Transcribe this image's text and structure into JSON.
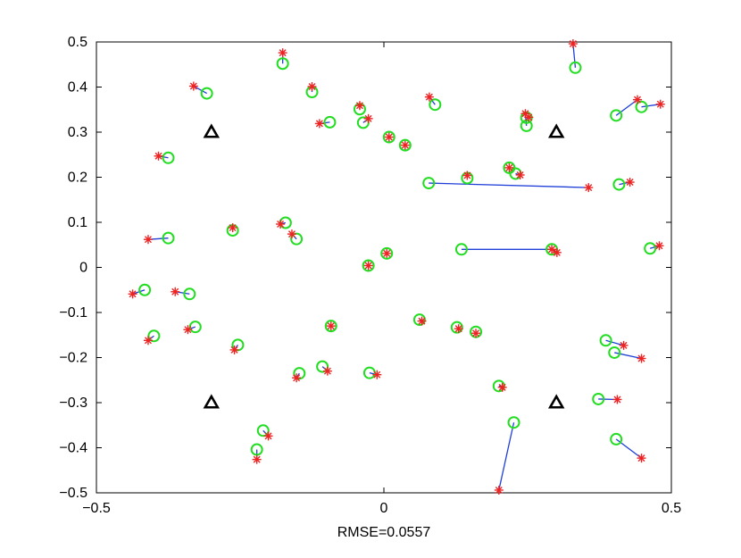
{
  "chart_data": {
    "type": "scatter",
    "xlabel": "RMSE=0.0557",
    "ylabel": "",
    "title": "",
    "xlim": [
      -0.5,
      0.5
    ],
    "ylim": [
      -0.5,
      0.5
    ],
    "xticks": [
      -0.5,
      0,
      0.5
    ],
    "xtick_labels": [
      "−0.5",
      "0",
      "0.5"
    ],
    "yticks": [
      -0.5,
      -0.4,
      -0.3,
      -0.2,
      -0.1,
      0,
      0.1,
      0.2,
      0.3,
      0.4,
      0.5
    ],
    "ytick_labels": [
      "−0.5",
      "−0.4",
      "−0.3",
      "−0.2",
      "−0.1",
      "0",
      "0.1",
      "0.2",
      "0.3",
      "0.4",
      "0.5"
    ],
    "grid": false,
    "colors": {
      "circle": "#22dd22",
      "star": "#ee2222",
      "line": "#1f3fd8",
      "anchor": "#000000"
    },
    "anchors": [
      {
        "x": -0.3,
        "y": 0.3
      },
      {
        "x": 0.3,
        "y": 0.3
      },
      {
        "x": -0.3,
        "y": -0.3
      },
      {
        "x": 0.3,
        "y": -0.3
      }
    ],
    "pairs": [
      {
        "true": [
          -0.176,
          0.452
        ],
        "est": [
          -0.176,
          0.476
        ]
      },
      {
        "true": [
          -0.308,
          0.386
        ],
        "est": [
          -0.331,
          0.402
        ]
      },
      {
        "true": [
          -0.125,
          0.389
        ],
        "est": [
          -0.125,
          0.401
        ]
      },
      {
        "true": [
          0.333,
          0.443
        ],
        "est": [
          0.329,
          0.496
        ]
      },
      {
        "true": [
          0.089,
          0.361
        ],
        "est": [
          0.079,
          0.378
        ]
      },
      {
        "true": [
          -0.094,
          0.322
        ],
        "est": [
          -0.112,
          0.319
        ]
      },
      {
        "true": [
          -0.042,
          0.351
        ],
        "est": [
          -0.042,
          0.359
        ]
      },
      {
        "true": [
          -0.036,
          0.321
        ],
        "est": [
          -0.027,
          0.33
        ]
      },
      {
        "true": [
          0.248,
          0.314
        ],
        "est": [
          0.246,
          0.341
        ]
      },
      {
        "true": [
          0.248,
          0.332
        ],
        "est": [
          0.252,
          0.333
        ]
      },
      {
        "true": [
          0.404,
          0.337
        ],
        "est": [
          0.441,
          0.372
        ]
      },
      {
        "true": [
          0.448,
          0.356
        ],
        "est": [
          0.481,
          0.362
        ]
      },
      {
        "true": [
          0.009,
          0.289
        ],
        "est": [
          0.009,
          0.289
        ]
      },
      {
        "true": [
          0.037,
          0.271
        ],
        "est": [
          0.037,
          0.271
        ]
      },
      {
        "true": [
          -0.375,
          0.243
        ],
        "est": [
          -0.392,
          0.247
        ]
      },
      {
        "true": [
          0.218,
          0.221
        ],
        "est": [
          0.218,
          0.221
        ]
      },
      {
        "true": [
          0.229,
          0.208
        ],
        "est": [
          0.237,
          0.205
        ]
      },
      {
        "true": [
          0.145,
          0.198
        ],
        "est": [
          0.145,
          0.204
        ]
      },
      {
        "true": [
          0.078,
          0.187
        ],
        "est": [
          0.356,
          0.177
        ]
      },
      {
        "true": [
          0.409,
          0.184
        ],
        "est": [
          0.428,
          0.189
        ]
      },
      {
        "true": [
          -0.171,
          0.099
        ],
        "est": [
          -0.18,
          0.096
        ]
      },
      {
        "true": [
          -0.263,
          0.082
        ],
        "est": [
          -0.263,
          0.088
        ]
      },
      {
        "true": [
          -0.152,
          0.063
        ],
        "est": [
          -0.16,
          0.074
        ]
      },
      {
        "true": [
          -0.375,
          0.065
        ],
        "est": [
          -0.41,
          0.062
        ]
      },
      {
        "true": [
          0.135,
          0.04
        ],
        "est": [
          0.292,
          0.04
        ]
      },
      {
        "true": [
          0.292,
          0.04
        ],
        "est": [
          0.301,
          0.033
        ]
      },
      {
        "true": [
          0.463,
          0.042
        ],
        "est": [
          0.479,
          0.048
        ]
      },
      {
        "true": [
          0.005,
          0.031
        ],
        "est": [
          0.005,
          0.031
        ]
      },
      {
        "true": [
          -0.027,
          0.004
        ],
        "est": [
          -0.027,
          0.004
        ]
      },
      {
        "true": [
          -0.416,
          -0.05
        ],
        "est": [
          -0.437,
          -0.059
        ]
      },
      {
        "true": [
          -0.338,
          -0.059
        ],
        "est": [
          -0.363,
          -0.054
        ]
      },
      {
        "true": [
          -0.328,
          -0.132
        ],
        "est": [
          -0.341,
          -0.138
        ]
      },
      {
        "true": [
          0.062,
          -0.116
        ],
        "est": [
          0.066,
          -0.119
        ]
      },
      {
        "true": [
          -0.092,
          -0.13
        ],
        "est": [
          -0.092,
          -0.13
        ]
      },
      {
        "true": [
          0.127,
          -0.133
        ],
        "est": [
          0.13,
          -0.136
        ]
      },
      {
        "true": [
          0.16,
          -0.143
        ],
        "est": [
          0.16,
          -0.146
        ]
      },
      {
        "true": [
          -0.4,
          -0.152
        ],
        "est": [
          -0.41,
          -0.162
        ]
      },
      {
        "true": [
          -0.254,
          -0.172
        ],
        "est": [
          -0.26,
          -0.183
        ]
      },
      {
        "true": [
          0.386,
          -0.162
        ],
        "est": [
          0.417,
          -0.173
        ]
      },
      {
        "true": [
          0.401,
          -0.189
        ],
        "est": [
          0.448,
          -0.202
        ]
      },
      {
        "true": [
          -0.107,
          -0.22
        ],
        "est": [
          -0.098,
          -0.23
        ]
      },
      {
        "true": [
          -0.147,
          -0.235
        ],
        "est": [
          -0.152,
          -0.245
        ]
      },
      {
        "true": [
          -0.025,
          -0.234
        ],
        "est": [
          -0.012,
          -0.238
        ]
      },
      {
        "true": [
          0.2,
          -0.263
        ],
        "est": [
          0.206,
          -0.266
        ]
      },
      {
        "true": [
          0.373,
          -0.292
        ],
        "est": [
          0.406,
          -0.293
        ]
      },
      {
        "true": [
          0.226,
          -0.344
        ],
        "est": [
          0.2,
          -0.494
        ]
      },
      {
        "true": [
          -0.21,
          -0.362
        ],
        "est": [
          -0.201,
          -0.374
        ]
      },
      {
        "true": [
          0.404,
          -0.381
        ],
        "est": [
          0.448,
          -0.423
        ]
      },
      {
        "true": [
          -0.221,
          -0.404
        ],
        "est": [
          -0.221,
          -0.426
        ]
      }
    ]
  }
}
